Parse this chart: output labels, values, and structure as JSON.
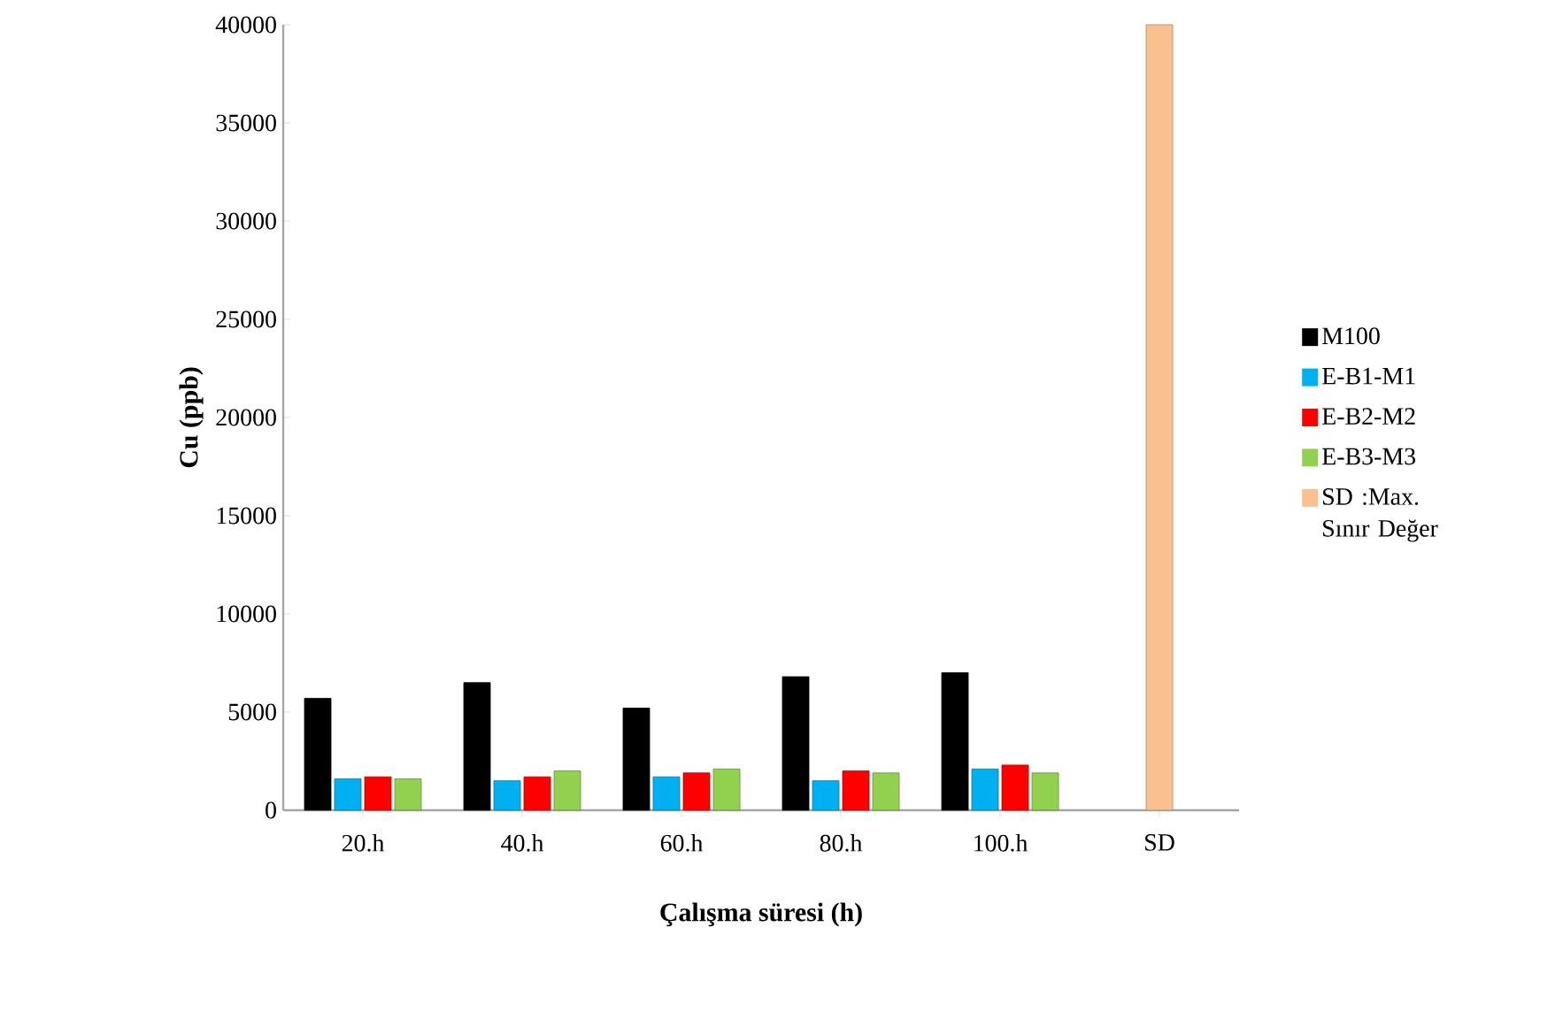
{
  "chart_data": {
    "type": "bar",
    "xlabel": "Çalışma süresi  (h)",
    "ylabel": "Cu  (ppb)",
    "categories": [
      "20.h",
      "40.h",
      "60.h",
      "80.h",
      "100.h",
      "SD"
    ],
    "series": [
      {
        "name": "M100",
        "color": "#000000",
        "values": [
          5700,
          6500,
          5200,
          6800,
          7000,
          null
        ]
      },
      {
        "name": "E-B1-M1",
        "color": "#00b0f0",
        "values": [
          1600,
          1500,
          1700,
          1500,
          2100,
          null
        ]
      },
      {
        "name": "E-B2-M2",
        "color": "#ff0000",
        "values": [
          1700,
          1700,
          1900,
          2000,
          2300,
          null
        ]
      },
      {
        "name": "E-B3-M3",
        "color": "#92d050",
        "values": [
          1600,
          2000,
          2100,
          1900,
          1900,
          null
        ]
      },
      {
        "name": "SD :Max. Sınır Değer",
        "color": "#fac090",
        "values": [
          null,
          null,
          null,
          null,
          null,
          40000
        ]
      }
    ],
    "ylim": [
      0,
      40000
    ],
    "yticks": [
      0,
      5000,
      10000,
      15000,
      20000,
      25000,
      30000,
      35000,
      40000
    ],
    "legend": "right"
  }
}
